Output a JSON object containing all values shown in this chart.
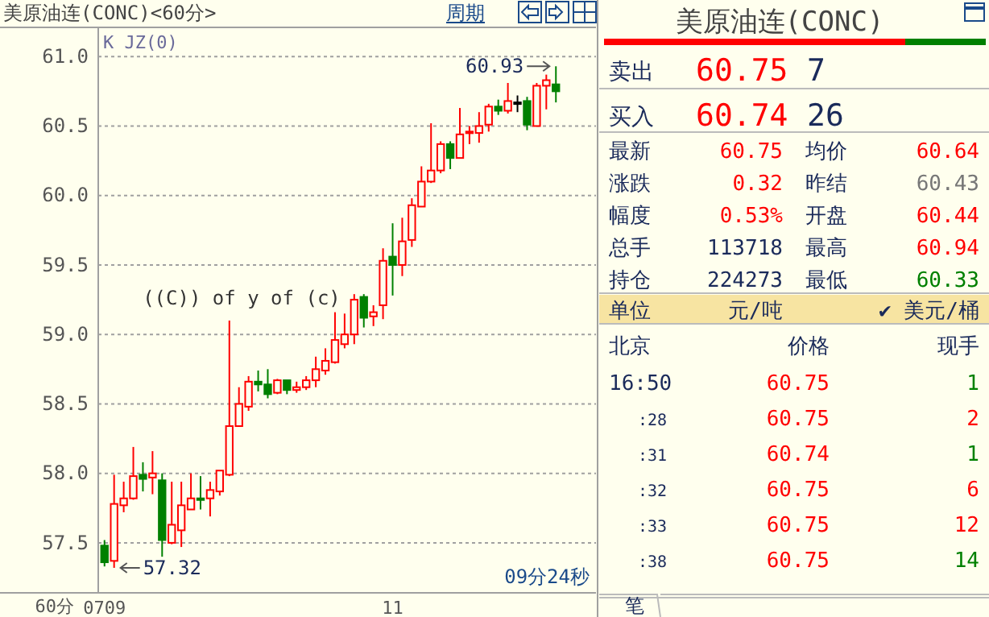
{
  "chart_data": [
    {
      "type": "candlestick",
      "title": "美原油连(CONC)<60分>",
      "categories": [
        "0709",
        null,
        null,
        null,
        null,
        null,
        null,
        null,
        null,
        null,
        null,
        null,
        null,
        null,
        null,
        null,
        null,
        null,
        null,
        null,
        null,
        null,
        null,
        null,
        null,
        null,
        null,
        null,
        null,
        null,
        "11",
        null,
        null,
        null,
        null,
        null,
        null,
        null,
        null,
        null,
        null,
        null,
        null,
        null,
        null,
        null,
        null,
        null
      ],
      "ohlc": [
        [
          57.48,
          57.52,
          57.33,
          57.36
        ],
        [
          57.37,
          57.99,
          57.32,
          57.78
        ],
        [
          57.77,
          57.94,
          57.72,
          57.82
        ],
        [
          57.82,
          58.19,
          57.81,
          57.98
        ],
        [
          57.99,
          58.08,
          57.87,
          57.96
        ],
        [
          57.97,
          58.16,
          57.85,
          58.0
        ],
        [
          57.95,
          58.0,
          57.4,
          57.52
        ],
        [
          57.5,
          57.94,
          57.49,
          57.63
        ],
        [
          57.59,
          57.94,
          57.47,
          57.77
        ],
        [
          57.74,
          58.0,
          57.74,
          57.82
        ],
        [
          57.82,
          57.98,
          57.74,
          57.81
        ],
        [
          57.82,
          57.94,
          57.69,
          57.88
        ],
        [
          57.87,
          58.02,
          57.84,
          58.02
        ],
        [
          57.99,
          59.1,
          57.98,
          58.34
        ],
        [
          58.34,
          58.62,
          58.34,
          58.5
        ],
        [
          58.48,
          58.7,
          58.45,
          58.66
        ],
        [
          58.66,
          58.74,
          58.59,
          58.64
        ],
        [
          58.64,
          58.75,
          58.54,
          58.57
        ],
        [
          58.58,
          58.68,
          58.57,
          58.67
        ],
        [
          58.67,
          58.67,
          58.57,
          58.6
        ],
        [
          58.6,
          58.66,
          58.58,
          58.62
        ],
        [
          58.62,
          58.7,
          58.6,
          58.67
        ],
        [
          58.67,
          58.84,
          58.62,
          58.75
        ],
        [
          58.74,
          58.9,
          58.71,
          58.81
        ],
        [
          58.8,
          59.16,
          58.79,
          58.96
        ],
        [
          58.93,
          59.15,
          58.9,
          59.0
        ],
        [
          59.0,
          59.29,
          58.93,
          59.25
        ],
        [
          59.27,
          59.29,
          59.05,
          59.12
        ],
        [
          59.13,
          59.21,
          59.06,
          59.16
        ],
        [
          59.21,
          59.62,
          59.11,
          59.53
        ],
        [
          59.56,
          59.8,
          59.28,
          59.5
        ],
        [
          59.5,
          59.84,
          59.42,
          59.67
        ],
        [
          59.68,
          59.98,
          59.63,
          59.93
        ],
        [
          59.92,
          60.21,
          59.92,
          60.1
        ],
        [
          60.1,
          60.52,
          60.09,
          60.18
        ],
        [
          60.18,
          60.39,
          60.16,
          60.37
        ],
        [
          60.37,
          60.39,
          60.19,
          60.27
        ],
        [
          60.27,
          60.63,
          60.27,
          60.44
        ],
        [
          60.45,
          60.5,
          60.37,
          60.46
        ],
        [
          60.45,
          60.6,
          60.38,
          60.5
        ],
        [
          60.51,
          60.66,
          60.46,
          60.64
        ],
        [
          60.64,
          60.69,
          60.58,
          60.61
        ],
        [
          60.61,
          60.81,
          60.59,
          60.68
        ],
        [
          60.67,
          60.72,
          60.6,
          60.67
        ],
        [
          60.68,
          60.71,
          60.47,
          60.51
        ],
        [
          60.5,
          60.81,
          60.5,
          60.79
        ],
        [
          60.79,
          60.87,
          60.62,
          60.83
        ],
        [
          60.8,
          60.93,
          60.67,
          60.75
        ]
      ],
      "colors": [
        "#008000",
        "#ff0000",
        "#ff0000",
        "#ff0000",
        "#008000",
        "#ff0000",
        "#008000",
        "#ff0000",
        "#ff0000",
        "#ff0000",
        "#008000",
        "#ff0000",
        "#ff0000",
        "#ff0000",
        "#ff0000",
        "#ff0000",
        "#008000",
        "#008000",
        "#ff0000",
        "#008000",
        "#ff0000",
        "#ff0000",
        "#ff0000",
        "#ff0000",
        "#ff0000",
        "#ff0000",
        "#ff0000",
        "#008000",
        "#ff0000",
        "#ff0000",
        "#008000",
        "#ff0000",
        "#ff0000",
        "#ff0000",
        "#ff0000",
        "#ff0000",
        "#008000",
        "#ff0000",
        "#ff0000",
        "#ff0000",
        "#ff0000",
        "#008000",
        "#ff0000",
        "#000000",
        "#008000",
        "#ff0000",
        "#ff0000",
        "#008000"
      ],
      "ylim": [
        57.14,
        61.21
      ],
      "yticks": [
        {
          "value": 57.5,
          "label": "57.5"
        },
        {
          "value": 58,
          "label": "58.0"
        },
        {
          "value": 58.5,
          "label": "58.5"
        },
        {
          "value": 59,
          "label": "59.0"
        },
        {
          "value": 59.5,
          "label": "59.5"
        },
        {
          "value": 60,
          "label": "60.0"
        },
        {
          "value": 60.5,
          "label": "60.5"
        },
        {
          "value": 61,
          "label": "61.0"
        }
      ],
      "grid": "y",
      "xlabel": "60分",
      "annotations": [
        "K JZ(0)",
        "((C)) of y of (c)",
        "57.32",
        "60.93",
        "09分24秒",
        "周期"
      ]
    },
    {
      "type": "other",
      "title": "美原油连(CONC)",
      "annotations": [
        "卖出",
        "60.75",
        "7",
        "买入",
        "60.74",
        "26",
        "最新",
        "60.75",
        "均价",
        "60.64",
        "涨跌",
        "0.32",
        "昨结",
        "60.43",
        "幅度",
        "0.53%",
        "开盘",
        "60.44",
        "总手",
        "113718",
        "最高",
        "60.94",
        "持仓",
        "224273",
        "最低",
        "60.33",
        "单位",
        "元/吨",
        "✔ 美元/桶",
        "北京",
        "价格",
        "现手",
        "16:50",
        "60.75",
        "1",
        ":28",
        "60.75",
        "2",
        ":31",
        "60.74",
        "1",
        ":32",
        "60.75",
        "6",
        ":33",
        "60.75",
        "12",
        ":38",
        "60.75",
        "14",
        "笔"
      ]
    }
  ]
}
